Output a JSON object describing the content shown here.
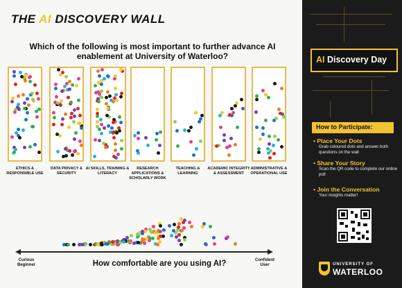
{
  "title": {
    "prefix": "THE ",
    "ai": "AI",
    "suffix": " DISCOVERY WALL"
  },
  "question": "Which of the following is most important to further advance AI enablement at University of Waterloo?",
  "categories": [
    "ETHICS & RESPONSIBLE USE",
    "DATA PRIVACY & SECURITY",
    "AI SKILLS, TRAINING & LITERACY",
    "RESEARCH APPLICATIONS & SCHOLARLY WORK",
    "TEACHING & LEARNING",
    "ACADEMIC INTEGRITY & ASSESSMENT",
    "ADMINISTRATIVE & OPERATIONAL USE"
  ],
  "scale": {
    "left": "Curious Beginner",
    "right": "Confident User",
    "question": "How comfortable are you using AI?"
  },
  "sidebar": {
    "event_ai": "AI",
    "event_rest": " Discovery Day",
    "howto": "How to Participate:",
    "steps": [
      {
        "heading": "Place Your Dots",
        "body": "Grab coloured dots and answer both questions on the wall"
      },
      {
        "heading": "Share Your Story",
        "body": "Scan the QR code to complete our online poll"
      },
      {
        "heading": "Join the Conversation",
        "body": "Your insights matter!"
      }
    ],
    "brand_top": "UNIVERSITY OF",
    "brand_bottom": "WATERLOO"
  },
  "colors": {
    "accent": "#f2c230",
    "panel_border": "#e9b949",
    "dark": "#1b1b1b"
  },
  "dot_palette": [
    "#e2231a",
    "#1f6fd1",
    "#2fb24a",
    "#f3c82b",
    "#e83d8f",
    "#7a3fb0",
    "#24b3d6",
    "#f07c20",
    "#1a1a1a",
    "#8ed14f"
  ]
}
